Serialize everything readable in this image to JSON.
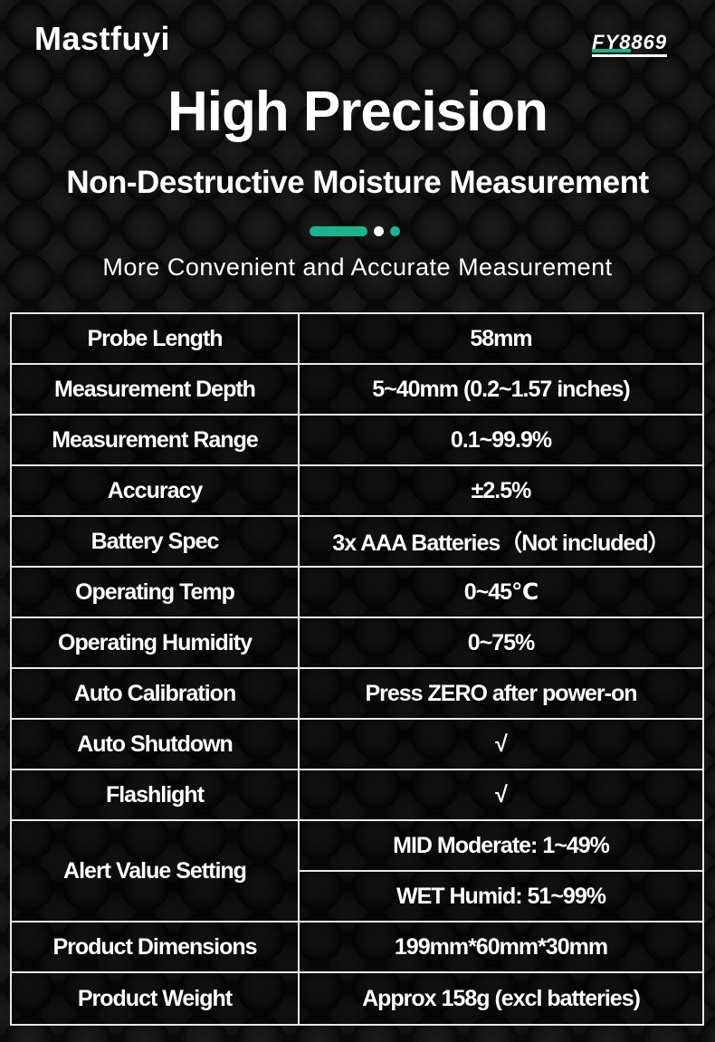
{
  "brand": "Mastfuyi",
  "model": "FY8869",
  "title": "High Precision",
  "subtitle": "Non-Destructive Moisture Measurement",
  "tagline": "More Convenient and Accurate Measurement",
  "accent_color": "#19b38e",
  "specs": [
    {
      "label": "Probe Length",
      "value": "58mm"
    },
    {
      "label": "Measurement Depth",
      "value": "5~40mm (0.2~1.57 inches)"
    },
    {
      "label": "Measurement Range",
      "value": "0.1~99.9%"
    },
    {
      "label": "Accuracy",
      "value": "±2.5%"
    },
    {
      "label": "Battery Spec",
      "value": "3x AAA Batteries（Not included）"
    },
    {
      "label": "Operating Temp",
      "value": "0~45℃"
    },
    {
      "label": "Operating Humidity",
      "value": "0~75%"
    },
    {
      "label": "Auto Calibration",
      "value": "Press ZERO after power-on"
    },
    {
      "label": "Auto Shutdown",
      "value": "√"
    },
    {
      "label": "Flashlight",
      "value": "√"
    },
    {
      "label": "Alert Value Setting",
      "values": [
        "MID Moderate: 1~49%",
        "WET Humid: 51~99%"
      ]
    },
    {
      "label": "Product Dimensions",
      "value": "199mm*60mm*30mm"
    },
    {
      "label": "Product Weight",
      "value": "Approx 158g (excl batteries)"
    }
  ]
}
